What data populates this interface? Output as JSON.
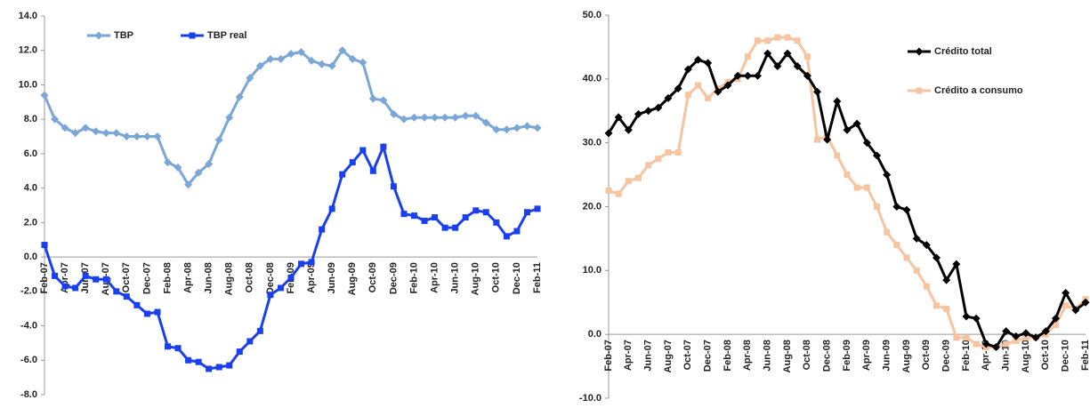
{
  "chart_data": [
    {
      "type": "line",
      "categories": [
        "Feb-07",
        null,
        "Apr-07",
        null,
        "Jun-07",
        null,
        "Aug-07",
        null,
        "Oct-07",
        null,
        "Dec-07",
        null,
        "Feb-08",
        null,
        "Apr-08",
        null,
        "Jun-08",
        null,
        "Aug-08",
        null,
        "Oct-08",
        null,
        "Dec-08",
        null,
        "Feb-09",
        null,
        "Apr-09",
        null,
        "Jun-09",
        null,
        "Aug-09",
        null,
        "Oct-09",
        null,
        "Dec-09",
        null,
        "Feb-10",
        null,
        "Apr-10",
        null,
        "Jun-10",
        null,
        "Aug-10",
        null,
        "Oct-10",
        null,
        "Dec-10",
        null,
        "Feb-11"
      ],
      "series": [
        {
          "name": "TBP",
          "color": "#7aa6d8",
          "marker": "diamond",
          "values": [
            9.4,
            8.0,
            7.5,
            7.2,
            7.5,
            7.3,
            7.2,
            7.2,
            7.0,
            7.0,
            7.0,
            7.0,
            5.5,
            5.2,
            4.2,
            4.9,
            5.4,
            6.8,
            8.1,
            9.3,
            10.4,
            11.1,
            11.5,
            11.5,
            11.8,
            11.9,
            11.4,
            11.2,
            11.1,
            12.0,
            11.5,
            11.3,
            9.2,
            9.1,
            8.3,
            8.0,
            8.1,
            8.1,
            8.1,
            8.1,
            8.1,
            8.2,
            8.2,
            7.8,
            7.4,
            7.4,
            7.5,
            7.6,
            7.5
          ]
        },
        {
          "name": "TBP real",
          "color": "#1a3ff0",
          "marker": "square",
          "values": [
            0.7,
            -1.1,
            -1.7,
            -1.8,
            -1.1,
            -1.3,
            -1.3,
            -2.0,
            -2.3,
            -2.8,
            -3.3,
            -3.2,
            -5.2,
            -5.3,
            -6.0,
            -6.1,
            -6.5,
            -6.4,
            -6.3,
            -5.5,
            -4.9,
            -4.3,
            -2.2,
            -1.8,
            -1.2,
            -0.4,
            -0.3,
            1.6,
            2.8,
            4.8,
            5.5,
            6.2,
            5.0,
            6.4,
            4.1,
            2.5,
            2.4,
            2.1,
            2.3,
            1.7,
            1.7,
            2.3,
            2.7,
            2.6,
            2.0,
            1.2,
            1.5,
            2.6,
            2.8
          ]
        }
      ],
      "ylim": [
        -8,
        14
      ],
      "yticks": [
        {
          "value": -8,
          "label": "-8.0"
        },
        {
          "value": -6,
          "label": "-6.0"
        },
        {
          "value": -4,
          "label": "-4.0"
        },
        {
          "value": -2,
          "label": "-2.0"
        },
        {
          "value": 0,
          "label": "0.0"
        },
        {
          "value": 2,
          "label": "2.0"
        },
        {
          "value": 4,
          "label": "4.0"
        },
        {
          "value": 6,
          "label": "6.0"
        },
        {
          "value": 8,
          "label": "8.0"
        },
        {
          "value": 10,
          "label": "10.0"
        },
        {
          "value": 12,
          "label": "12.0"
        },
        {
          "value": 14,
          "label": "14.0"
        }
      ],
      "legend": "top"
    },
    {
      "type": "line",
      "categories": [
        "Feb-07",
        null,
        "Apr-07",
        null,
        "Jun-07",
        null,
        "Aug-07",
        null,
        "Oct-07",
        null,
        "Dec-07",
        null,
        "Feb-08",
        null,
        "Apr-08",
        null,
        "Jun-08",
        null,
        "Aug-08",
        null,
        "Oct-08",
        null,
        "Dec-08",
        null,
        "Feb-09",
        null,
        "Apr-09",
        null,
        "Jun-09",
        null,
        "Aug-09",
        null,
        "Oct-09",
        null,
        "Dec-09",
        null,
        "Feb-10",
        null,
        "Apr-10",
        null,
        "Jun-10",
        null,
        "Aug-10",
        null,
        "Oct-10",
        null,
        "Dec-10",
        null,
        "Feb-11"
      ],
      "series": [
        {
          "name": "Crédito a consumo",
          "color": "#f6c49e",
          "marker": "square",
          "values": [
            22.5,
            22,
            24,
            24.5,
            26.5,
            27.5,
            28.5,
            28.5,
            37.5,
            39,
            37,
            38.5,
            39.5,
            40,
            43.5,
            46,
            46,
            46.5,
            46.5,
            46,
            43.5,
            30.5,
            31,
            28,
            25,
            23,
            23,
            20,
            16,
            14,
            12,
            10,
            7.5,
            4.5,
            4,
            -0.5,
            -0.5,
            -1.5,
            -2,
            -2,
            -1.5,
            -1,
            -0.5,
            -0.5,
            0,
            1.5,
            4.5,
            4,
            5.5
          ]
        },
        {
          "name": "Crédito total",
          "color": "#000000",
          "marker": "diamond",
          "values": [
            31.5,
            34,
            32,
            34.5,
            35,
            35.5,
            37,
            38.5,
            41.5,
            43,
            42.5,
            38,
            39,
            40.5,
            40.5,
            40.5,
            44,
            42,
            44,
            42,
            40.5,
            38,
            30.5,
            36.5,
            32,
            33,
            30,
            28,
            25,
            20,
            19.5,
            15,
            14,
            12,
            8.5,
            11,
            2.8,
            2.5,
            -1.5,
            -2,
            0.5,
            -0.3,
            0.2,
            -0.5,
            0.5,
            2.5,
            6.5,
            3.8,
            5.0
          ]
        }
      ],
      "ylim": [
        -10,
        50
      ],
      "yticks": [
        {
          "value": -10,
          "label": "-10.0"
        },
        {
          "value": 0,
          "label": "0.0"
        },
        {
          "value": 10,
          "label": "10.0"
        },
        {
          "value": 20,
          "label": "20.0"
        },
        {
          "value": 30,
          "label": "30.0"
        },
        {
          "value": 40,
          "label": "40.0"
        },
        {
          "value": 50,
          "label": "50.0"
        }
      ],
      "legend": "right"
    }
  ]
}
